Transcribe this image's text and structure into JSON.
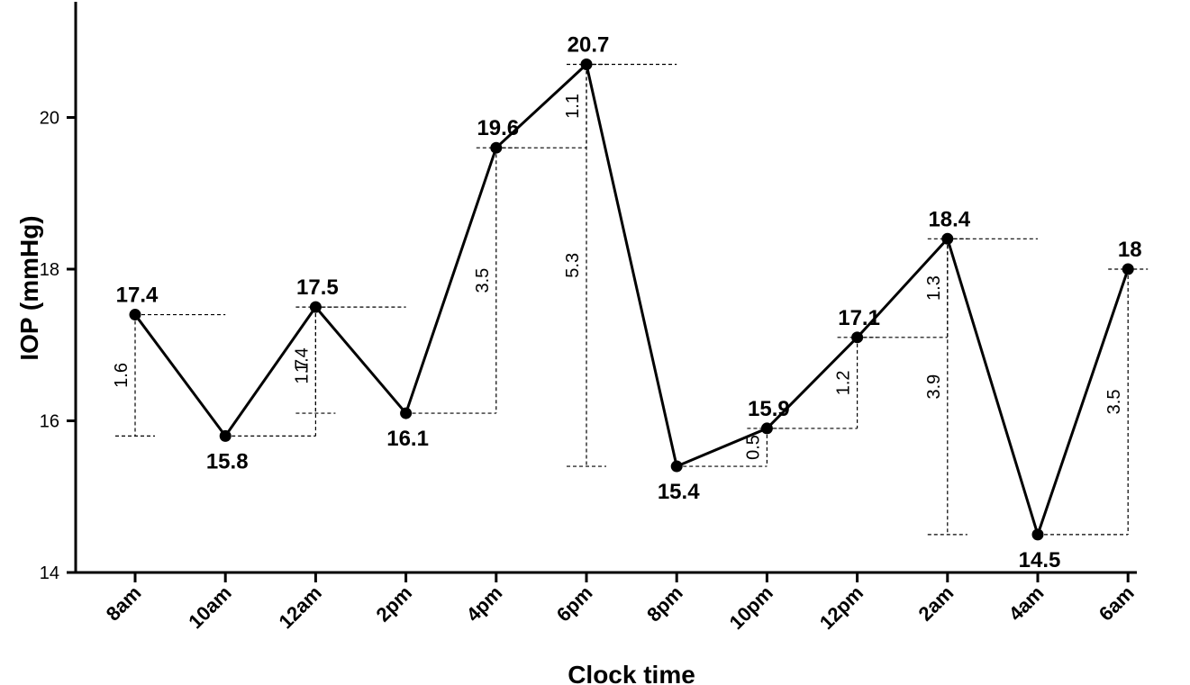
{
  "chart_data": {
    "type": "line",
    "xlabel": "Clock time",
    "ylabel": "IOP (mmHg)",
    "ylim": [
      14,
      21.5
    ],
    "yticks": [
      14,
      16,
      18,
      20
    ],
    "categories": [
      "8am",
      "10am",
      "12am",
      "2pm",
      "4pm",
      "6pm",
      "8pm",
      "10pm",
      "12pm",
      "2am",
      "4am",
      "6am"
    ],
    "values": [
      17.4,
      15.8,
      17.5,
      16.1,
      19.6,
      20.7,
      15.4,
      15.9,
      17.1,
      18.4,
      14.5,
      18.0
    ],
    "data_labels": [
      "17.4",
      "15.8",
      "17.5",
      "16.1",
      "19.6",
      "20.7",
      "15.4",
      "15.9",
      "17.1",
      "18.4",
      "14.5",
      "18"
    ],
    "differences": [
      {
        "label": "1.6",
        "from": 0,
        "to": 1
      },
      {
        "label": "1.7",
        "from": 1,
        "to": 2
      },
      {
        "label": "1.4",
        "from": 2,
        "to": 3
      },
      {
        "label": "3.5",
        "from": 3,
        "to": 4
      },
      {
        "label": "1.1",
        "from": 4,
        "to": 5
      },
      {
        "label": "5.3",
        "from": 5,
        "to": 6
      },
      {
        "label": "0.5",
        "from": 6,
        "to": 7
      },
      {
        "label": "1.2",
        "from": 7,
        "to": 8
      },
      {
        "label": "1.3",
        "from": 8,
        "to": 9
      },
      {
        "label": "3.9",
        "from": 9,
        "to": 10
      },
      {
        "label": "3.5",
        "from": 10,
        "to": 11
      }
    ],
    "line_color": "#000000",
    "grid": false,
    "legend": "none"
  }
}
